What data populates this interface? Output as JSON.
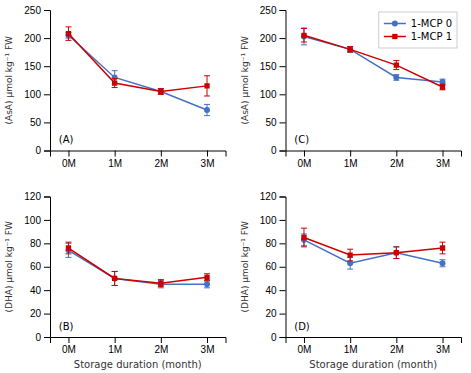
{
  "chart_data": [
    {
      "type": "line",
      "categories": [
        "0M",
        "1M",
        "2M",
        "3M"
      ],
      "ylabel": "(AsA) μmol kg⁻¹ FW",
      "ylim": [
        0,
        250
      ],
      "yticks": [
        0,
        50,
        100,
        150,
        200,
        250
      ],
      "grid": false,
      "annotations": [
        "(A)"
      ],
      "series": [
        {
          "color": "#4472C4",
          "marker": "circle",
          "values": [
            205,
            130,
            105,
            72
          ],
          "errors": [
            5,
            12,
            5,
            10
          ]
        },
        {
          "color": "#CC0000",
          "marker": "square",
          "values": [
            208,
            120,
            105,
            115
          ],
          "errors": [
            12,
            8,
            5,
            18
          ]
        }
      ]
    },
    {
      "type": "line",
      "categories": [
        "0M",
        "1M",
        "2M",
        "3M"
      ],
      "ylabel": "(AsA) μmol kg⁻¹ FW",
      "ylim": [
        0,
        250
      ],
      "yticks": [
        0,
        50,
        100,
        150,
        200,
        250
      ],
      "grid": false,
      "annotations": [
        "(C)"
      ],
      "legend": "upper right",
      "series": [
        {
          "name": "1-MCP 0",
          "color": "#4472C4",
          "marker": "circle",
          "values": [
            203,
            180,
            130,
            122
          ],
          "errors": [
            15,
            5,
            5,
            5
          ]
        },
        {
          "name": "1-MCP 1",
          "color": "#CC0000",
          "marker": "square",
          "values": [
            205,
            180,
            152,
            113
          ],
          "errors": [
            12,
            5,
            8,
            5
          ]
        }
      ]
    },
    {
      "type": "line",
      "categories": [
        "0M",
        "1M",
        "2M",
        "3M"
      ],
      "xlabel": "Storage duration (month)",
      "ylabel": "(DHA) μmol kg⁻¹ FW",
      "ylim": [
        0,
        120
      ],
      "yticks": [
        0,
        20,
        40,
        60,
        80,
        100,
        120
      ],
      "grid": false,
      "annotations": [
        "(B)"
      ],
      "series": [
        {
          "color": "#4472C4",
          "marker": "circle",
          "values": [
            74,
            50,
            45,
            45
          ],
          "errors": [
            6,
            6,
            3,
            3
          ]
        },
        {
          "color": "#CC0000",
          "marker": "square",
          "values": [
            76,
            50,
            46,
            51
          ],
          "errors": [
            5,
            6,
            3,
            3
          ]
        }
      ]
    },
    {
      "type": "line",
      "categories": [
        "0M",
        "1M",
        "2M",
        "3M"
      ],
      "xlabel": "Storage duration (month)",
      "ylabel": "(DHA) μmol kg⁻¹ FW",
      "ylim": [
        0,
        120
      ],
      "yticks": [
        0,
        20,
        40,
        60,
        80,
        100,
        120
      ],
      "grid": false,
      "annotations": [
        "(D)"
      ],
      "series": [
        {
          "color": "#4472C4",
          "marker": "circle",
          "values": [
            83,
            63,
            72,
            63
          ],
          "errors": [
            5,
            5,
            5,
            3
          ]
        },
        {
          "color": "#CC0000",
          "marker": "square",
          "values": [
            85,
            70,
            72,
            76
          ],
          "errors": [
            8,
            5,
            5,
            5
          ]
        }
      ]
    }
  ]
}
